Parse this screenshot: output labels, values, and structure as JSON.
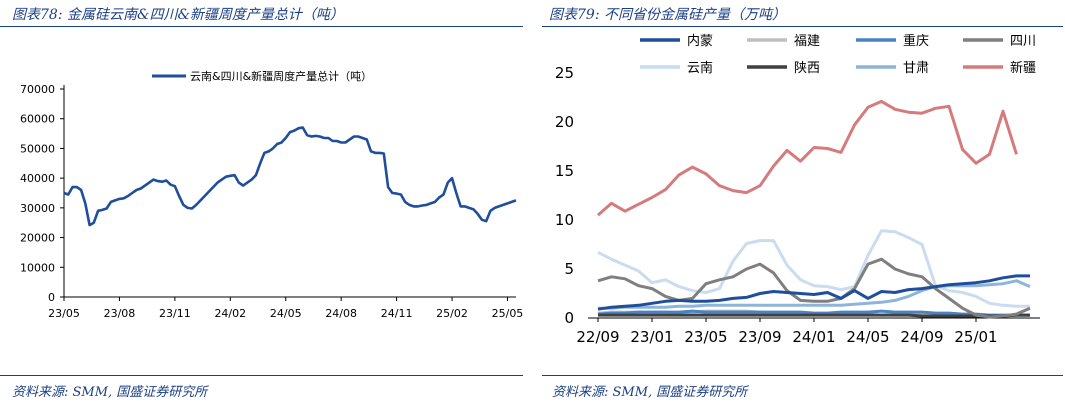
{
  "left": {
    "title": "图表78: 金属硅云南&四川&新疆周度产量总计（吨）",
    "source": "资料来源: SMM, 国盛证券研究所"
  },
  "right": {
    "title": "图表79: 不同省份金属硅产量（万吨）",
    "source": "资料来源: SMM, 国盛证券研究所"
  },
  "chart_data": [
    {
      "type": "line",
      "title": "",
      "xlabel": "",
      "ylabel": "",
      "ylim": [
        0,
        70000
      ],
      "yticks": [
        0,
        10000,
        20000,
        30000,
        40000,
        50000,
        60000,
        70000
      ],
      "xlim": [
        0,
        106
      ],
      "xticks": [
        {
          "label": "23/05",
          "x": 0
        },
        {
          "label": "23/08",
          "x": 13
        },
        {
          "label": "23/11",
          "x": 26
        },
        {
          "label": "24/02",
          "x": 39
        },
        {
          "label": "24/05",
          "x": 52
        },
        {
          "label": "24/08",
          "x": 65
        },
        {
          "label": "24/11",
          "x": 78
        },
        {
          "label": "25/02",
          "x": 91
        },
        {
          "label": "25/05",
          "x": 104
        }
      ],
      "grid": false,
      "legend_position": "top",
      "series": [
        {
          "name": "云南&四川&新疆周度产量总计（吨）",
          "color": "#1f4e9c",
          "values": [
            35000,
            34500,
            37000,
            37000,
            36000,
            31500,
            24200,
            25000,
            29000,
            29300,
            29800,
            32000,
            32500,
            33000,
            33200,
            34000,
            35000,
            36000,
            36500,
            37500,
            38500,
            39500,
            39000,
            38800,
            39200,
            37800,
            37300,
            34000,
            31000,
            30000,
            29800,
            31000,
            32500,
            34000,
            35500,
            37000,
            38500,
            39500,
            40500,
            40800,
            41000,
            38500,
            37500,
            38500,
            39500,
            41000,
            45000,
            48500,
            49000,
            50000,
            51500,
            52000,
            53500,
            55500,
            56000,
            56800,
            57000,
            54500,
            54000,
            54200,
            54000,
            53500,
            53500,
            52500,
            52500,
            52000,
            52000,
            53000,
            54000,
            54000,
            53500,
            53000,
            49000,
            48500,
            48500,
            48300,
            37000,
            35000,
            34800,
            34500,
            32000,
            31000,
            30500,
            30500,
            30800,
            31000,
            31500,
            32000,
            33500,
            34500,
            38500,
            40000,
            35000,
            30500,
            30500,
            30000,
            29500,
            28000,
            26000,
            25500,
            29000,
            30000,
            30500,
            31000,
            31500,
            32000,
            32500
          ]
        }
      ]
    },
    {
      "type": "line",
      "title": "",
      "xlabel": "",
      "ylabel": "",
      "ylim": [
        0,
        25
      ],
      "yticks": [
        0,
        5,
        10,
        15,
        20,
        25
      ],
      "x": [
        "22/09",
        "22/10",
        "22/11",
        "22/12",
        "23/01",
        "23/02",
        "23/03",
        "23/04",
        "23/05",
        "23/06",
        "23/07",
        "23/08",
        "23/09",
        "23/10",
        "23/11",
        "23/12",
        "24/01",
        "24/02",
        "24/03",
        "24/04",
        "24/05",
        "24/06",
        "24/07",
        "24/08",
        "24/09",
        "24/10",
        "24/11",
        "24/12",
        "25/01",
        "25/02",
        "25/03",
        "25/04",
        "25/05"
      ],
      "xticks": [
        "22/09",
        "23/01",
        "23/05",
        "23/09",
        "24/01",
        "24/05",
        "24/09",
        "25/01"
      ],
      "grid": false,
      "legend_position": "top",
      "series": [
        {
          "name": "内蒙",
          "color": "#1f4e9c",
          "values": [
            0.9,
            1.1,
            1.2,
            1.3,
            1.5,
            1.7,
            1.8,
            1.7,
            1.7,
            1.8,
            2.0,
            2.1,
            2.5,
            2.7,
            2.6,
            2.5,
            2.4,
            2.6,
            2.0,
            2.8,
            2.0,
            2.7,
            2.6,
            2.9,
            3.0,
            3.2,
            3.4,
            3.5,
            3.6,
            3.8,
            4.1,
            4.3,
            4.3
          ]
        },
        {
          "name": "福建",
          "color": "#bfbfbf",
          "values": [
            0.5,
            0.6,
            0.6,
            0.6,
            0.6,
            0.6,
            0.5,
            0.6,
            0.7,
            0.7,
            0.7,
            0.7,
            0.6,
            0.5,
            0.5,
            0.5,
            0.4,
            0.4,
            0.5,
            0.4,
            0.4,
            0.3,
            0.4,
            0.4,
            0.3,
            0.3,
            0.2,
            0.2,
            0.3,
            0.2,
            0.2,
            0.3,
            0.3
          ]
        },
        {
          "name": "重庆",
          "color": "#4a83c4",
          "values": [
            0.4,
            0.5,
            0.5,
            0.6,
            0.6,
            0.6,
            0.6,
            0.7,
            0.6,
            0.6,
            0.6,
            0.6,
            0.6,
            0.6,
            0.6,
            0.6,
            0.5,
            0.5,
            0.6,
            0.6,
            0.6,
            0.7,
            0.6,
            0.6,
            0.6,
            0.5,
            0.5,
            0.4,
            0.4,
            0.3,
            0.3,
            0.3,
            0.3
          ]
        },
        {
          "name": "四川",
          "color": "#7f7f7f",
          "values": [
            3.8,
            4.2,
            4.0,
            3.3,
            3.0,
            2.2,
            1.8,
            2.0,
            3.5,
            3.9,
            4.2,
            5.0,
            5.5,
            4.6,
            2.8,
            1.8,
            1.7,
            1.7,
            2.0,
            3.0,
            5.5,
            6.0,
            5.0,
            4.5,
            4.2,
            3.0,
            2.0,
            1.0,
            0.3,
            0.1,
            0.2,
            0.4,
            1.0
          ]
        },
        {
          "name": "云南",
          "color": "#c9dcf0",
          "values": [
            6.7,
            6.0,
            5.4,
            4.8,
            3.6,
            3.9,
            3.2,
            2.8,
            2.6,
            3.0,
            5.8,
            7.6,
            7.9,
            7.9,
            5.4,
            3.9,
            3.3,
            3.2,
            2.9,
            3.2,
            6.4,
            8.9,
            8.8,
            8.2,
            7.5,
            3.3,
            2.8,
            2.6,
            2.2,
            1.5,
            1.3,
            1.2,
            1.2
          ]
        },
        {
          "name": "陕西",
          "color": "#404040",
          "values": [
            0.3,
            0.3,
            0.3,
            0.3,
            0.3,
            0.3,
            0.3,
            0.3,
            0.3,
            0.3,
            0.3,
            0.3,
            0.3,
            0.3,
            0.3,
            0.3,
            0.3,
            0.3,
            0.3,
            0.3,
            0.3,
            0.3,
            0.3,
            0.3,
            0.2,
            0.2,
            0.2,
            0.2,
            0.2,
            0.2,
            0.2,
            0.3,
            0.3
          ]
        },
        {
          "name": "甘肃",
          "color": "#8fb4d9",
          "values": [
            1.0,
            1.0,
            1.1,
            1.1,
            1.1,
            1.1,
            1.2,
            1.2,
            1.3,
            1.3,
            1.3,
            1.3,
            1.3,
            1.3,
            1.3,
            1.3,
            1.3,
            1.3,
            1.3,
            1.4,
            1.5,
            1.6,
            1.8,
            2.2,
            2.8,
            3.2,
            3.3,
            3.3,
            3.3,
            3.4,
            3.5,
            3.8,
            3.2
          ]
        },
        {
          "name": "新疆",
          "color": "#d67b7b",
          "values": [
            10.5,
            11.7,
            10.9,
            11.6,
            12.3,
            13.1,
            14.6,
            15.4,
            14.7,
            13.5,
            13.0,
            12.8,
            13.5,
            15.5,
            17.1,
            16.0,
            17.4,
            17.3,
            16.9,
            19.7,
            21.5,
            22.1,
            21.3,
            21.0,
            20.9,
            21.4,
            21.6,
            17.2,
            15.8,
            16.7,
            21.1,
            16.7,
            null
          ]
        }
      ]
    }
  ]
}
